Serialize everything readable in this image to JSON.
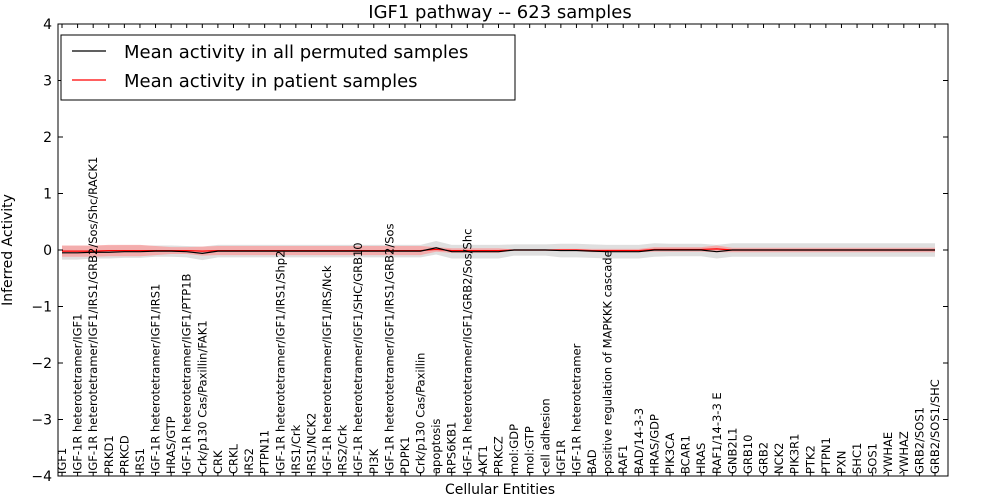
{
  "chart_data": {
    "type": "line",
    "title": "IGF1 pathway -- 623 samples",
    "xlabel": "Cellular Entities",
    "ylabel": "Inferred Activity",
    "ylim": [
      -4,
      4
    ],
    "yticks": [
      -4,
      -3,
      -2,
      -1,
      0,
      1,
      2,
      3,
      4
    ],
    "ytick_labels": [
      "−4",
      "−3",
      "−2",
      "−1",
      "0",
      "1",
      "2",
      "3",
      "4"
    ],
    "legend_position": "top-left",
    "categories": [
      "IGF1",
      "IGF-1R heterotetramer/IGF1",
      "IGF-1R heterotetramer/IGF1/IRS1/GRB2/Sos/Shc/RACK1",
      "PRKD1",
      "PRKCD",
      "IRS1",
      "IGF-1R heterotetramer/IGF1/IRS1",
      "HRAS/GTP",
      "IGF-1R heterotetramer/IGF1/PTP1B",
      "Crk/p130 Cas/Paxillin/FAK1",
      "CRK",
      "CRKL",
      "IRS2",
      "PTPN11",
      "IGF-1R heterotetramer/IGF1/IRS1/Shp2",
      "IRS1/Crk",
      "IRS1/NCK2",
      "IGF-1R heterotetramer/IGF1/IRS/Nck",
      "IRS2/Crk",
      "IGF-1R heterotetramer/IGF1/SHC/GRB10",
      "PI3K",
      "IGF-1R heterotetramer/IGF1/IRS1/GRB2/Sos",
      "PDPK1",
      "Crk/p130 Cas/Paxillin",
      "apoptosis",
      "RPS6KB1",
      "IGF-1R heterotetramer/IGF1/GRB2/Sos/Shc",
      "AKT1",
      "PRKCZ",
      "mol:GDP",
      "mol:GTP",
      "cell adhesion",
      "IGF1R",
      "IGF-1R heterotetramer",
      "BAD",
      "positive regulation of MAPKKK cascade",
      "RAF1",
      "BAD/14-3-3",
      "HRAS/GDP",
      "PIK3CA",
      "BCAR1",
      "HRAS",
      "RAF1/14-3-3 E",
      "GNB2L1",
      "GRB10",
      "GRB2",
      "NCK2",
      "PIK3R1",
      "PTK2",
      "PTPN1",
      "PXN",
      "SHC1",
      "SOS1",
      "YWHAE",
      "YWHAZ",
      "GRB2/SOS1",
      "GRB2/SOS1/SHC"
    ],
    "series": [
      {
        "name": "Mean activity in all permuted samples",
        "color": "#000000",
        "values": [
          -0.05,
          -0.05,
          -0.04,
          -0.04,
          -0.03,
          -0.03,
          -0.02,
          -0.02,
          -0.03,
          -0.06,
          -0.02,
          -0.02,
          -0.02,
          -0.02,
          -0.02,
          -0.02,
          -0.02,
          -0.02,
          -0.02,
          -0.02,
          -0.02,
          -0.02,
          -0.02,
          -0.02,
          0.04,
          -0.03,
          -0.03,
          -0.03,
          -0.03,
          0.0,
          0.0,
          0.0,
          -0.01,
          -0.01,
          -0.02,
          -0.03,
          -0.03,
          -0.03,
          0.0,
          0.0,
          0.0,
          0.0,
          -0.03,
          0.0,
          0.0,
          0.0,
          0.0,
          0.0,
          0.0,
          0.0,
          0.0,
          0.0,
          0.0,
          0.0,
          0.0,
          0.0,
          0.0
        ],
        "band_values": [
          0.12,
          0.12,
          0.11,
          0.11,
          0.11,
          0.11,
          0.1,
          0.1,
          0.1,
          0.12,
          0.11,
          0.11,
          0.11,
          0.11,
          0.11,
          0.11,
          0.11,
          0.11,
          0.11,
          0.11,
          0.11,
          0.11,
          0.11,
          0.11,
          0.12,
          0.12,
          0.12,
          0.12,
          0.12,
          0.1,
          0.1,
          0.1,
          0.12,
          0.12,
          0.12,
          0.12,
          0.12,
          0.12,
          0.12,
          0.11,
          0.11,
          0.11,
          0.12,
          0.12,
          0.12,
          0.12,
          0.12,
          0.12,
          0.12,
          0.12,
          0.12,
          0.12,
          0.12,
          0.12,
          0.12,
          0.12,
          0.12
        ]
      },
      {
        "name": "Mean activity in patient samples",
        "color": "#ff0000",
        "values": [
          -0.02,
          -0.02,
          -0.02,
          -0.01,
          -0.01,
          -0.01,
          -0.01,
          -0.01,
          -0.01,
          -0.02,
          -0.01,
          -0.01,
          -0.01,
          -0.01,
          -0.01,
          -0.01,
          -0.01,
          -0.01,
          -0.01,
          -0.01,
          -0.01,
          -0.01,
          -0.01,
          -0.01,
          0.01,
          -0.01,
          -0.01,
          -0.01,
          -0.01,
          0.0,
          0.0,
          0.0,
          0.0,
          0.0,
          -0.01,
          -0.01,
          -0.01,
          -0.01,
          0.01,
          0.01,
          0.01,
          0.01,
          0.02,
          0.0,
          0.0,
          0.0,
          0.0,
          0.0,
          0.0,
          0.0,
          0.0,
          0.0,
          0.0,
          0.0,
          0.0,
          0.0,
          0.0
        ],
        "band_values": [
          0.1,
          0.1,
          0.1,
          0.1,
          0.1,
          0.1,
          0.08,
          0.06,
          0.06,
          0.08,
          0.08,
          0.08,
          0.08,
          0.08,
          0.08,
          0.08,
          0.08,
          0.08,
          0.08,
          0.08,
          0.08,
          0.08,
          0.08,
          0.08,
          0.04,
          0.04,
          0.04,
          0.04,
          0.04,
          0.01,
          0.01,
          0.01,
          0.02,
          0.02,
          0.03,
          0.03,
          0.03,
          0.03,
          0.04,
          0.04,
          0.04,
          0.04,
          0.06,
          0.04,
          0.04,
          0.04,
          0.04,
          0.04,
          0.04,
          0.04,
          0.04,
          0.04,
          0.04,
          0.04,
          0.04,
          0.04,
          0.04
        ]
      }
    ],
    "band_colors": {
      "permuted": "#d9d9d9",
      "patient": "#f8a0a0"
    }
  }
}
